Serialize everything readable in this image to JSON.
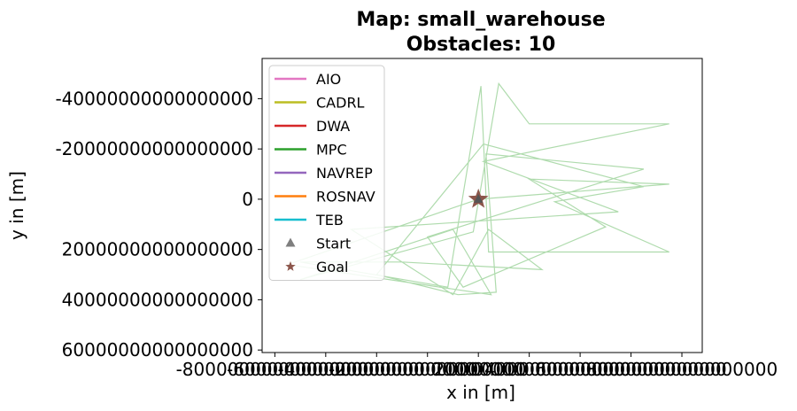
{
  "chart_data": {
    "type": "line",
    "title_line1": "Map: small_warehouse",
    "title_line2": "Obstacles: 10",
    "xlabel": "x in [m]",
    "ylabel": "y in [m]",
    "xlim": [
      -8.5e+16,
      8.8e+16
    ],
    "ylim": [
      6.1e+16,
      -5.6e+16
    ],
    "y_inverted": true,
    "x_ticks": [
      {
        "value": -8e+16,
        "label": "-80000000000000000"
      },
      {
        "value": -6e+16,
        "label": "-60000000000000000"
      },
      {
        "value": -4e+16,
        "label": "-40000000000000000"
      },
      {
        "value": -2e+16,
        "label": "-20000000000000000"
      },
      {
        "value": 0,
        "label": "0"
      },
      {
        "value": 2e+16,
        "label": "20000000000000000"
      },
      {
        "value": 4e+16,
        "label": "40000000000000000"
      },
      {
        "value": 6e+16,
        "label": "60000000000000000"
      },
      {
        "value": 8e+16,
        "label": "80000000000000000"
      }
    ],
    "y_ticks": [
      {
        "value": -4e+16,
        "label": "-40000000000000000"
      },
      {
        "value": -2e+16,
        "label": "-20000000000000000"
      },
      {
        "value": 0,
        "label": "0"
      },
      {
        "value": 2e+16,
        "label": "20000000000000000"
      },
      {
        "value": 4e+16,
        "label": "40000000000000000"
      },
      {
        "value": 6e+16,
        "label": "60000000000000000"
      }
    ],
    "grid": false,
    "legend_position": "top-left",
    "legend": [
      {
        "name": "AIO",
        "color": "#e377c2",
        "kind": "line"
      },
      {
        "name": "CADRL",
        "color": "#bcbd22",
        "kind": "line"
      },
      {
        "name": "DWA",
        "color": "#d62728",
        "kind": "line"
      },
      {
        "name": "MPC",
        "color": "#2ca02c",
        "kind": "line"
      },
      {
        "name": "NAVREP",
        "color": "#9467bd",
        "kind": "line"
      },
      {
        "name": "ROSNAV",
        "color": "#ff7f0e",
        "kind": "line"
      },
      {
        "name": "TEB",
        "color": "#17becf",
        "kind": "line"
      },
      {
        "name": "Start",
        "color": "#7f7f7f",
        "kind": "triangle"
      },
      {
        "name": "Goal",
        "color": "#8c564b",
        "kind": "star"
      }
    ],
    "start_point": {
      "x": 0,
      "y": 0
    },
    "goal_point": {
      "x": 0,
      "y": 0
    },
    "mpc_trajectory_color": "#4daf4a",
    "mpc_trajectory_points": [
      [
        0,
        0
      ],
      [
        -7.5e+16,
        2.6e+16
      ],
      [
        5000000000000000.0,
        3.8e+16
      ],
      [
        -1e+16,
        1.2e+16
      ],
      [
        -7e+16,
        3.2e+16
      ],
      [
        -2000000000000000.0,
        1.3e+16
      ],
      [
        8000000000000000.0,
        -4.6e+16
      ],
      [
        2e+16,
        -3e+16
      ],
      [
        7.5e+16,
        -3e+16
      ],
      [
        2000000000000000.0,
        -1.5e+16
      ],
      [
        5.5e+16,
        5000000000000000.0
      ],
      [
        -5e+16,
        1.2e+16
      ],
      [
        -1e+16,
        3.8e+16
      ],
      [
        4000000000000000.0,
        1.2e+16
      ],
      [
        2.5e+16,
        2.8e+16
      ],
      [
        -3e+16,
        2.5e+16
      ],
      [
        -7e+16,
        2.5e+16
      ],
      [
        -1.2e+16,
        3.5e+16
      ],
      [
        1000000000000000.0,
        -4.5e+16
      ],
      [
        4000000000000000.0,
        2.1e+16
      ],
      [
        7.5e+16,
        2.1e+16
      ],
      [
        3e+16,
        1000000000000000.0
      ],
      [
        6.5e+16,
        -5000000000000000.0
      ],
      [
        2000000000000000.0,
        -2.2e+16
      ],
      [
        -4e+16,
        3e+16
      ],
      [
        -8000000000000000.0,
        3.8e+16
      ],
      [
        7000000000000000.0,
        3.7e+16
      ],
      [
        3000000000000000.0,
        -1.8e+16
      ],
      [
        6.5e+16,
        -1.2e+16
      ],
      [
        -2e+16,
        1.5e+16
      ],
      [
        -6000000000000000.0,
        3.5e+16
      ],
      [
        5e+16,
        1.1e+16
      ],
      [
        2e+16,
        -8000000000000000.0
      ],
      [
        7.5e+16,
        -6000000000000000.0
      ],
      [
        0,
        0
      ]
    ]
  }
}
